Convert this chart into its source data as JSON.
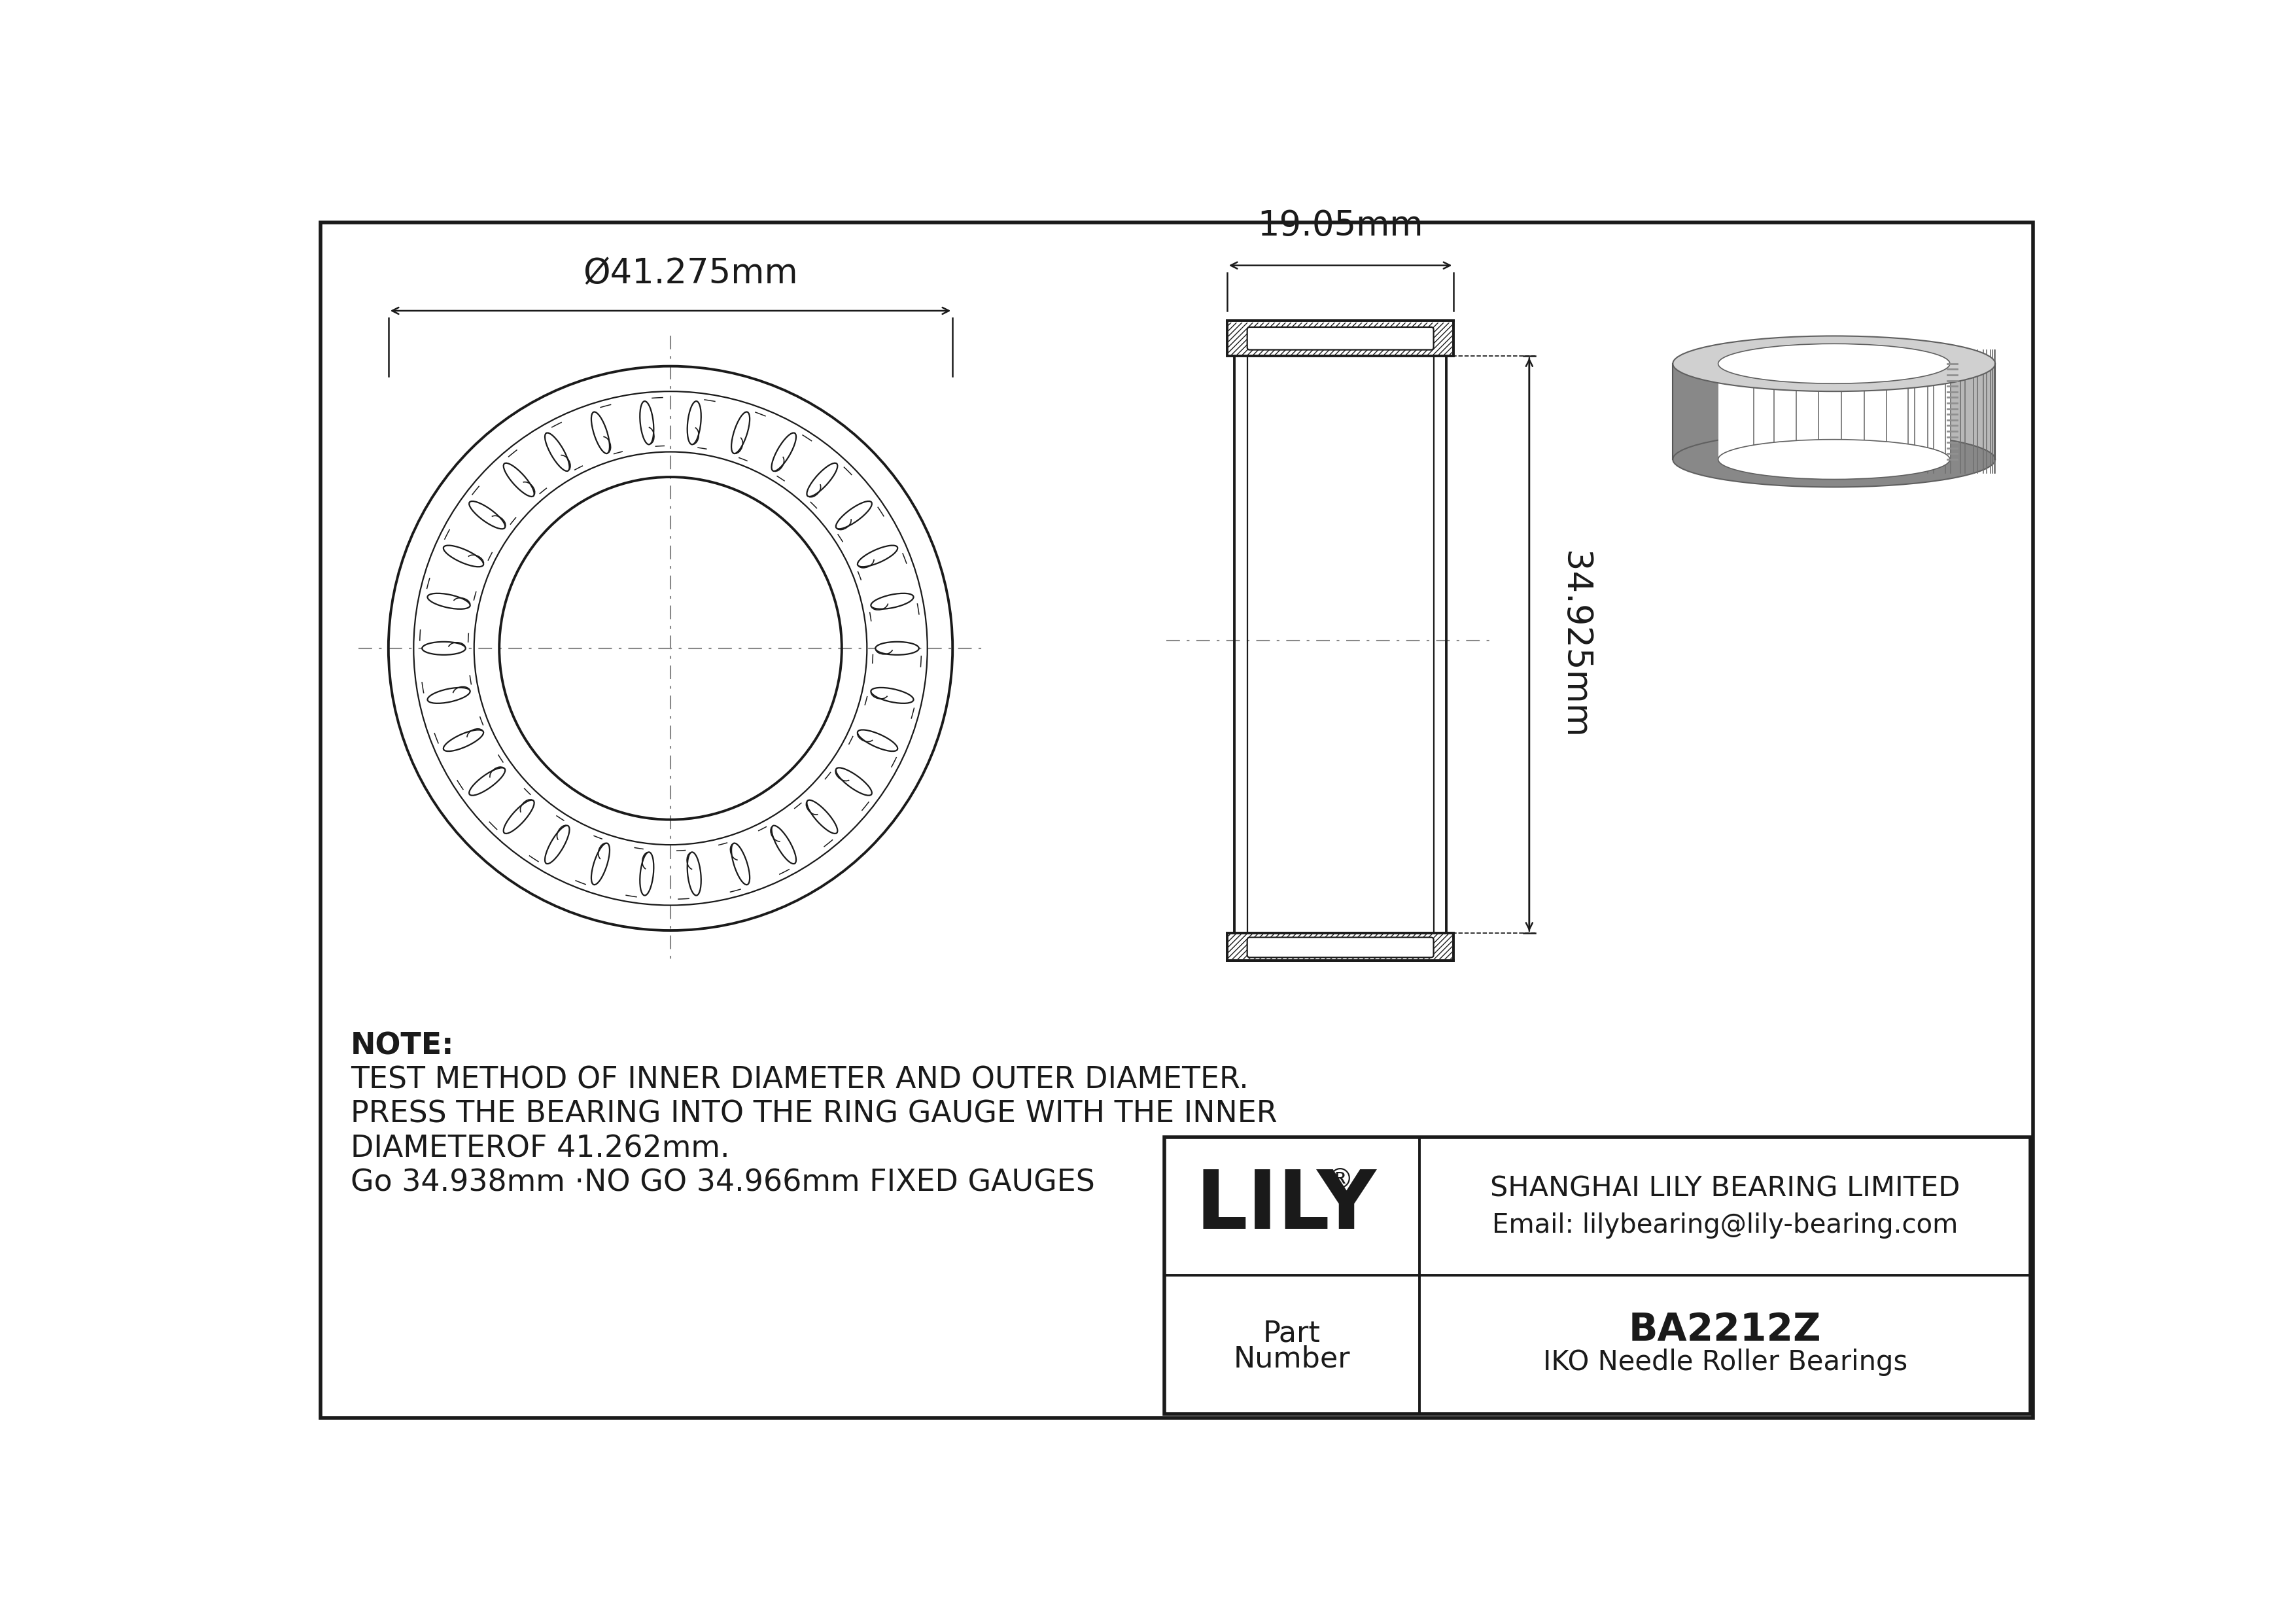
{
  "bg_color": "#ffffff",
  "line_color": "#1a1a1a",
  "outer_diameter_label": "Ø41.275mm",
  "width_label": "19.05mm",
  "height_label": "34.925mm",
  "note_lines": [
    "NOTE:",
    "TEST METHOD OF INNER DIAMETER AND OUTER DIAMETER.",
    "PRESS THE BEARING INTO THE RING GAUGE WITH THE INNER",
    "DIAMETEROF 41.262mm.",
    "Go 34.938mm ·NO GO 34.966mm FIXED GAUGES"
  ],
  "company_name": "LILY",
  "company_reg": "®",
  "company_full": "SHANGHAI LILY BEARING LIMITED",
  "company_email": "Email: lilybearing@lily-bearing.com",
  "part_label_1": "Part",
  "part_label_2": "Number",
  "part_number": "BA2212Z",
  "part_type": "IKO Needle Roller Bearings",
  "grey_outer": "#b8b8b8",
  "grey_mid": "#a0a0a0",
  "grey_dark": "#888888",
  "grey_light": "#d0d0d0",
  "grey_bore": "#c8c8c8"
}
